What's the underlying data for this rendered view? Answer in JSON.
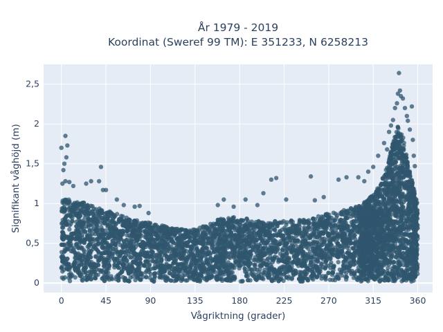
{
  "chart_data": {
    "type": "scatter",
    "title_line1": "År 1979 - 2019",
    "title_line2": "Koordinat (Sweref 99 TM): E 351233, N 6258213",
    "xlabel": "Vågriktning (grader)",
    "ylabel": "Signifikant våghöjd (m)",
    "xlim": [
      -18,
      375
    ],
    "ylim": [
      -0.12,
      2.75
    ],
    "xticks": [
      0,
      45,
      90,
      135,
      180,
      225,
      270,
      315,
      360
    ],
    "xtick_labels": [
      "0",
      "45",
      "90",
      "135",
      "180",
      "225",
      "270",
      "315",
      "360"
    ],
    "yticks": [
      0,
      0.5,
      1,
      1.5,
      2,
      2.5
    ],
    "ytick_labels": [
      "0",
      "0,5",
      "1",
      "1,5",
      "2",
      "2,5"
    ],
    "grid": true,
    "marker_color": "#2f566e",
    "plot_background": "#e5ecf6",
    "envelope": {
      "x": [
        0,
        10,
        20,
        30,
        40,
        50,
        60,
        70,
        80,
        90,
        100,
        110,
        120,
        130,
        140,
        150,
        160,
        170,
        180,
        190,
        200,
        210,
        220,
        230,
        240,
        250,
        260,
        270,
        280,
        290,
        300,
        310,
        320,
        325,
        330,
        335,
        340,
        345,
        350,
        355,
        360
      ],
      "y_max": [
        1.05,
        1.05,
        1.02,
        0.98,
        0.95,
        0.9,
        0.85,
        0.8,
        0.78,
        0.76,
        0.73,
        0.7,
        0.68,
        0.67,
        0.7,
        0.74,
        0.82,
        0.84,
        0.83,
        0.8,
        0.78,
        0.77,
        0.78,
        0.79,
        0.8,
        0.82,
        0.85,
        0.87,
        0.9,
        0.93,
        0.97,
        1.05,
        1.2,
        1.35,
        1.5,
        1.8,
        2.0,
        1.85,
        1.5,
        1.25,
        1.0
      ]
    },
    "outliers": [
      {
        "x": 0,
        "y": 1.7
      },
      {
        "x": 4,
        "y": 1.85
      },
      {
        "x": 6,
        "y": 1.73
      },
      {
        "x": 5,
        "y": 1.58
      },
      {
        "x": 3,
        "y": 1.5
      },
      {
        "x": 2,
        "y": 1.42
      },
      {
        "x": 1,
        "y": 1.25
      },
      {
        "x": 4,
        "y": 1.28
      },
      {
        "x": 8,
        "y": 1.27
      },
      {
        "x": 12,
        "y": 1.22
      },
      {
        "x": 25,
        "y": 1.25
      },
      {
        "x": 30,
        "y": 1.28
      },
      {
        "x": 38,
        "y": 1.28
      },
      {
        "x": 40,
        "y": 1.46
      },
      {
        "x": 42,
        "y": 1.17
      },
      {
        "x": 45,
        "y": 1.17
      },
      {
        "x": 56,
        "y": 1.05
      },
      {
        "x": 63,
        "y": 0.98
      },
      {
        "x": 74,
        "y": 0.96
      },
      {
        "x": 79,
        "y": 0.97
      },
      {
        "x": 88,
        "y": 0.88
      },
      {
        "x": 158,
        "y": 0.98
      },
      {
        "x": 164,
        "y": 1.05
      },
      {
        "x": 174,
        "y": 0.96
      },
      {
        "x": 186,
        "y": 1.05
      },
      {
        "x": 198,
        "y": 0.98
      },
      {
        "x": 204,
        "y": 1.13
      },
      {
        "x": 212,
        "y": 1.3
      },
      {
        "x": 217,
        "y": 1.32
      },
      {
        "x": 227,
        "y": 1.05
      },
      {
        "x": 252,
        "y": 1.34
      },
      {
        "x": 256,
        "y": 1.04
      },
      {
        "x": 265,
        "y": 1.08
      },
      {
        "x": 280,
        "y": 1.3
      },
      {
        "x": 288,
        "y": 1.33
      },
      {
        "x": 300,
        "y": 1.33
      },
      {
        "x": 306,
        "y": 1.28
      },
      {
        "x": 310,
        "y": 1.4
      },
      {
        "x": 315,
        "y": 1.46
      },
      {
        "x": 320,
        "y": 1.6
      },
      {
        "x": 326,
        "y": 1.76
      },
      {
        "x": 329,
        "y": 1.68
      },
      {
        "x": 333,
        "y": 1.98
      },
      {
        "x": 335,
        "y": 2.05
      },
      {
        "x": 337,
        "y": 2.2
      },
      {
        "x": 339,
        "y": 2.26
      },
      {
        "x": 340,
        "y": 2.38
      },
      {
        "x": 341,
        "y": 2.64
      },
      {
        "x": 342,
        "y": 2.42
      },
      {
        "x": 343,
        "y": 2.35
      },
      {
        "x": 345,
        "y": 2.32
      },
      {
        "x": 347,
        "y": 2.2
      },
      {
        "x": 349,
        "y": 2.1
      },
      {
        "x": 350,
        "y": 2.04
      },
      {
        "x": 354,
        "y": 2.22
      },
      {
        "x": 355,
        "y": 1.8
      },
      {
        "x": 356,
        "y": 1.6
      },
      {
        "x": 357,
        "y": 1.47
      },
      {
        "x": 352,
        "y": 1.93
      },
      {
        "x": 331,
        "y": 1.9
      }
    ]
  }
}
